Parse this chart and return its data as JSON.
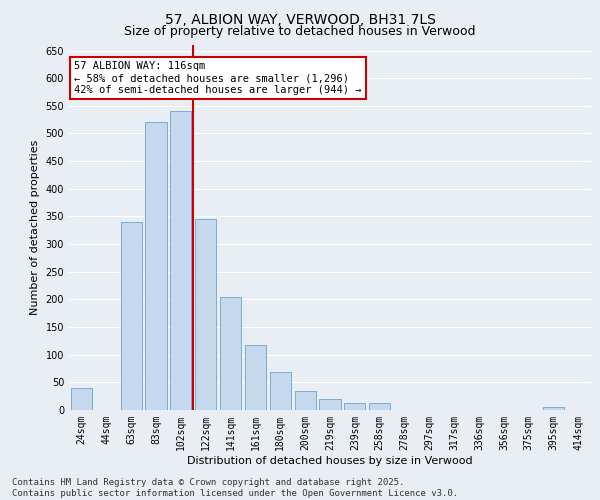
{
  "title": "57, ALBION WAY, VERWOOD, BH31 7LS",
  "subtitle": "Size of property relative to detached houses in Verwood",
  "xlabel": "Distribution of detached houses by size in Verwood",
  "ylabel": "Number of detached properties",
  "categories": [
    "24sqm",
    "44sqm",
    "63sqm",
    "83sqm",
    "102sqm",
    "122sqm",
    "141sqm",
    "161sqm",
    "180sqm",
    "200sqm",
    "219sqm",
    "239sqm",
    "258sqm",
    "278sqm",
    "297sqm",
    "317sqm",
    "336sqm",
    "356sqm",
    "375sqm",
    "395sqm",
    "414sqm"
  ],
  "values": [
    40,
    0,
    340,
    520,
    540,
    345,
    205,
    118,
    68,
    35,
    20,
    12,
    12,
    0,
    0,
    0,
    0,
    0,
    0,
    5,
    0
  ],
  "bar_color": "#c5d8ed",
  "bar_edge_color": "#7aadd4",
  "vline_color": "#cc0000",
  "annotation_title": "57 ALBION WAY: 116sqm",
  "annotation_line1": "← 58% of detached houses are smaller (1,296)",
  "annotation_line2": "42% of semi-detached houses are larger (944) →",
  "annotation_box_color": "#cc0000",
  "ylim": [
    0,
    660
  ],
  "yticks": [
    0,
    50,
    100,
    150,
    200,
    250,
    300,
    350,
    400,
    450,
    500,
    550,
    600,
    650
  ],
  "footer": "Contains HM Land Registry data © Crown copyright and database right 2025.\nContains public sector information licensed under the Open Government Licence v3.0.",
  "bg_color": "#e8eef4",
  "plot_bg_color": "#e8eef4",
  "grid_color": "#ffffff",
  "title_fontsize": 10,
  "subtitle_fontsize": 9,
  "axis_label_fontsize": 8,
  "tick_fontsize": 7,
  "footer_fontsize": 6.5,
  "annotation_fontsize": 7.5
}
